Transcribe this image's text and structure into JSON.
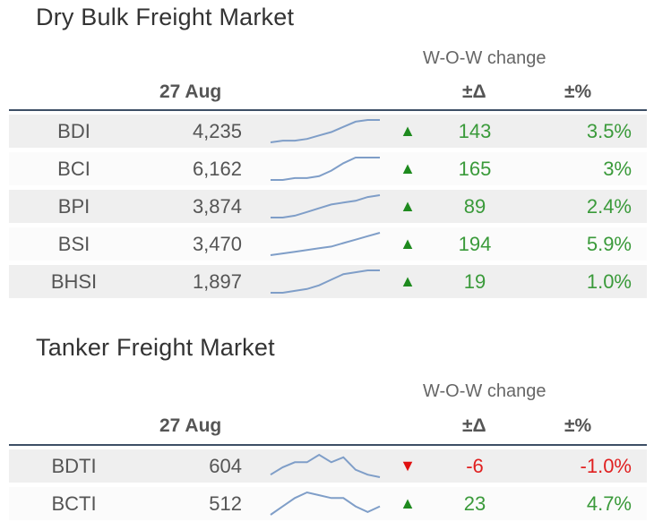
{
  "dry": {
    "title": "Dry Bulk Freight Market",
    "wow_label": "W-O-W change",
    "date": "27 Aug",
    "delta_header": "±Δ",
    "pct_header": "±%",
    "rows": [
      {
        "name": "BDI",
        "value": "4,235",
        "dir": "up",
        "delta": "143",
        "pct": "3.5%",
        "spark": [
          10,
          11,
          11,
          12,
          14,
          16,
          19,
          22,
          23,
          23
        ]
      },
      {
        "name": "BCI",
        "value": "6,162",
        "dir": "up",
        "delta": "165",
        "pct": "3%",
        "spark": [
          10,
          10,
          11,
          11,
          12,
          15,
          19,
          22,
          22,
          22
        ]
      },
      {
        "name": "BPI",
        "value": "3,874",
        "dir": "up",
        "delta": "89",
        "pct": "2.4%",
        "spark": [
          10,
          10,
          11,
          13,
          15,
          17,
          18,
          19,
          21,
          22
        ]
      },
      {
        "name": "BSI",
        "value": "3,470",
        "dir": "up",
        "delta": "194",
        "pct": "5.9%",
        "spark": [
          10,
          11,
          12,
          13,
          14,
          15,
          17,
          19,
          21,
          23
        ]
      },
      {
        "name": "BHSI",
        "value": "1,897",
        "dir": "up",
        "delta": "19",
        "pct": "1.0%",
        "spark": [
          10,
          10,
          11,
          12,
          14,
          17,
          20,
          21,
          22,
          22
        ]
      }
    ]
  },
  "tanker": {
    "title": "Tanker Freight Market",
    "wow_label": "W-O-W change",
    "date": "27 Aug",
    "delta_header": "±Δ",
    "pct_header": "±%",
    "rows": [
      {
        "name": "BDTI",
        "value": "604",
        "dir": "down",
        "delta": "-6",
        "pct": "-1.0%",
        "spark": [
          12,
          15,
          17,
          17,
          20,
          17,
          19,
          14,
          12,
          11
        ]
      },
      {
        "name": "BCTI",
        "value": "512",
        "dir": "up",
        "delta": "23",
        "pct": "4.7%",
        "spark": [
          11,
          14,
          17,
          19,
          18,
          17,
          17,
          14,
          12,
          14
        ]
      }
    ]
  }
}
